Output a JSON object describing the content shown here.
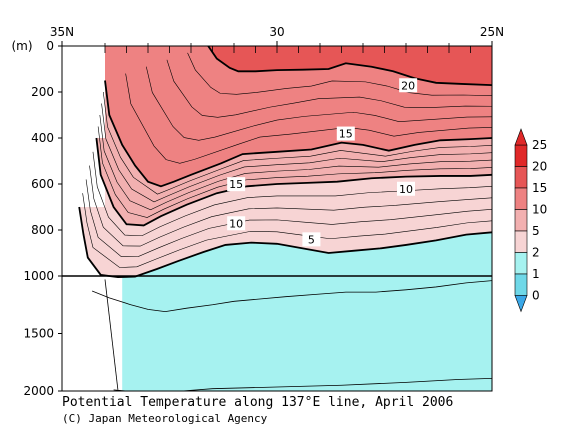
{
  "chart_data": {
    "type": "contour",
    "title": "Potential Temperature along 137°E line, April 2006",
    "credit": "(C) Japan Meteorological Agency",
    "x_axis": {
      "ticks": [
        {
          "value": 35,
          "label": "35N"
        },
        {
          "value": 30,
          "label": "30"
        },
        {
          "value": 25,
          "label": "25N"
        }
      ],
      "range": [
        35,
        25
      ],
      "position": "top"
    },
    "y_axis": {
      "unit_label": "(m)",
      "upper_panel": {
        "range": [
          0,
          1000
        ],
        "ticks": [
          0,
          200,
          400,
          600,
          800,
          1000
        ]
      },
      "lower_panel": {
        "range": [
          1000,
          2000
        ],
        "ticks": [
          1500,
          2000
        ]
      }
    },
    "legend": {
      "levels": [
        "0",
        "1",
        "2",
        "5",
        "10",
        "15",
        "20",
        "25"
      ],
      "colors": [
        "#3aa8e8",
        "#6fd8e8",
        "#a6f2f0",
        "#f7d4d4",
        "#f2b0b0",
        "#ee8282",
        "#e65656",
        "#e02828"
      ],
      "position": "right"
    },
    "contour_labels": [
      {
        "value": "20",
        "lat": 26.95,
        "depth": 175
      },
      {
        "value": "15",
        "lat": 28.4,
        "depth": 385
      },
      {
        "value": "15",
        "lat": 30.95,
        "depth": 605
      },
      {
        "value": "10",
        "lat": 27.0,
        "depth": 625
      },
      {
        "value": "10",
        "lat": 30.95,
        "depth": 775
      },
      {
        "value": "5",
        "lat": 29.2,
        "depth": 845
      }
    ],
    "isotherms": [
      {
        "t": 20,
        "points": [
          [
            31.6,
            0
          ],
          [
            31.4,
            55
          ],
          [
            31.1,
            95
          ],
          [
            30.9,
            110
          ],
          [
            30.5,
            110
          ],
          [
            30.0,
            105
          ],
          [
            29.4,
            103
          ],
          [
            28.8,
            100
          ],
          [
            28.4,
            75
          ],
          [
            27.8,
            90
          ],
          [
            27.3,
            110
          ],
          [
            26.8,
            140
          ],
          [
            26.3,
            160
          ],
          [
            25.7,
            165
          ],
          [
            25,
            170
          ]
        ]
      },
      {
        "t": 15,
        "points": [
          [
            34.0,
            150
          ],
          [
            33.9,
            300
          ],
          [
            33.6,
            430
          ],
          [
            33.3,
            520
          ],
          [
            33.0,
            590
          ],
          [
            32.7,
            610
          ],
          [
            32.4,
            590
          ],
          [
            32.0,
            560
          ],
          [
            31.3,
            510
          ],
          [
            30.8,
            470
          ],
          [
            30.0,
            460
          ],
          [
            29.2,
            450
          ],
          [
            28.5,
            420
          ],
          [
            28.0,
            430
          ],
          [
            27.4,
            455
          ],
          [
            26.8,
            430
          ],
          [
            26.2,
            410
          ],
          [
            25.5,
            405
          ],
          [
            25,
            400
          ]
        ]
      },
      {
        "t": 10,
        "points": [
          [
            34.2,
            400
          ],
          [
            34.1,
            560
          ],
          [
            33.8,
            700
          ],
          [
            33.5,
            775
          ],
          [
            33.1,
            780
          ],
          [
            32.7,
            740
          ],
          [
            32.1,
            690
          ],
          [
            31.4,
            640
          ],
          [
            30.7,
            610
          ],
          [
            30.0,
            600
          ],
          [
            29.3,
            595
          ],
          [
            28.6,
            590
          ],
          [
            27.8,
            575
          ],
          [
            27.0,
            568
          ],
          [
            26.2,
            565
          ],
          [
            25.5,
            565
          ],
          [
            25,
            560
          ]
        ]
      },
      {
        "t": 5,
        "points": [
          [
            34.6,
            700
          ],
          [
            34.5,
            820
          ],
          [
            34.4,
            920
          ],
          [
            34.1,
            995
          ],
          [
            33.7,
            1010
          ],
          [
            33.3,
            1005
          ],
          [
            32.8,
            970
          ],
          [
            32.3,
            935
          ],
          [
            31.7,
            895
          ],
          [
            31.2,
            865
          ],
          [
            30.6,
            855
          ],
          [
            30.0,
            860
          ],
          [
            29.4,
            880
          ],
          [
            28.8,
            900
          ],
          [
            28.2,
            890
          ],
          [
            27.6,
            880
          ],
          [
            27.0,
            865
          ],
          [
            26.3,
            845
          ],
          [
            25.6,
            820
          ],
          [
            25,
            810
          ]
        ]
      },
      {
        "t": 2,
        "points": [
          [
            34.3,
            1130
          ],
          [
            33.9,
            1190
          ],
          [
            33.4,
            1250
          ],
          [
            33.0,
            1290
          ],
          [
            32.6,
            1310
          ],
          [
            32.1,
            1280
          ],
          [
            31.5,
            1250
          ],
          [
            31.0,
            1220
          ],
          [
            30.4,
            1200
          ],
          [
            29.8,
            1180
          ],
          [
            29.1,
            1160
          ],
          [
            28.4,
            1140
          ],
          [
            27.7,
            1140
          ],
          [
            27.0,
            1120
          ],
          [
            26.3,
            1095
          ],
          [
            25.6,
            1060
          ],
          [
            25,
            1040
          ]
        ]
      },
      {
        "t": 1,
        "points": [
          [
            33.8,
            1990
          ],
          [
            33.5,
            2000
          ]
        ]
      },
      {
        "t": 1.5,
        "points": [
          [
            32.2,
            2000
          ],
          [
            31.5,
            1980
          ],
          [
            30.0,
            1965
          ],
          [
            28.5,
            1950
          ],
          [
            27.0,
            1925
          ],
          [
            25.8,
            1900
          ],
          [
            25,
            1890
          ]
        ]
      }
    ],
    "data_start_lat": 34.0,
    "bottom_start_lat_deep": 33.6
  }
}
